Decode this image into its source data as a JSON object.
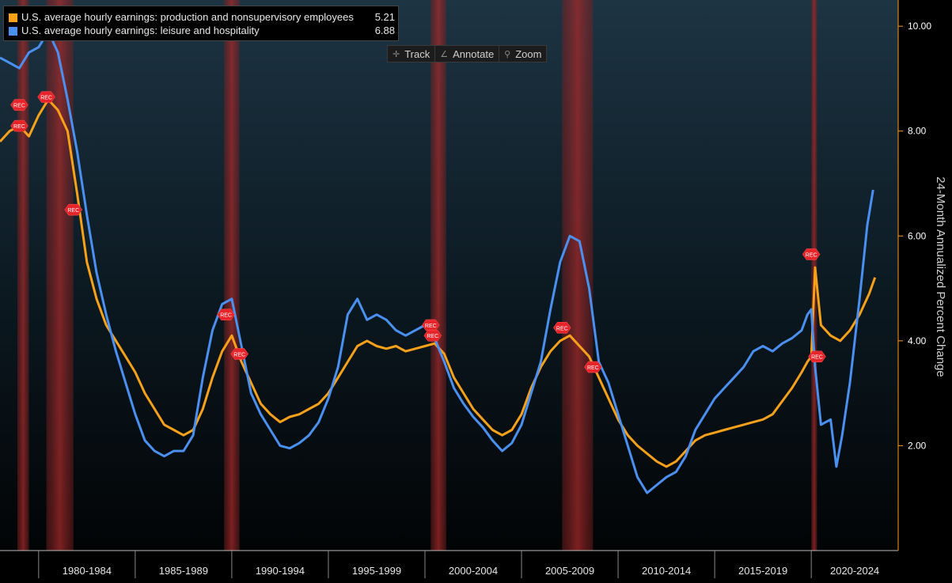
{
  "chart_data": {
    "type": "line",
    "ylabel": "24-Month Annualized Percent Change",
    "ylim": [
      0,
      10.5
    ],
    "y_ticks": [
      "2.00",
      "4.00",
      "6.00",
      "8.00",
      "10.00"
    ],
    "x_range": [
      1978.0,
      2024.5
    ],
    "x_ticks": [
      {
        "label": "1980-1984",
        "start": 1980,
        "end": 1985
      },
      {
        "label": "1985-1989",
        "start": 1985,
        "end": 1990
      },
      {
        "label": "1990-1994",
        "start": 1990,
        "end": 1995
      },
      {
        "label": "1995-1999",
        "start": 1995,
        "end": 2000
      },
      {
        "label": "2000-2004",
        "start": 2000,
        "end": 2005
      },
      {
        "label": "2005-2009",
        "start": 2005,
        "end": 2010
      },
      {
        "label": "2010-2014",
        "start": 2010,
        "end": 2015
      },
      {
        "label": "2015-2019",
        "start": 2015,
        "end": 2020
      },
      {
        "label": "2020-2024",
        "start": 2020,
        "end": 2025
      }
    ],
    "recessions": [
      {
        "start": 1978.9,
        "end": 1979.5
      },
      {
        "start": 1980.4,
        "end": 1981.8
      },
      {
        "start": 1989.6,
        "end": 1990.4
      },
      {
        "start": 2000.3,
        "end": 2001.1
      },
      {
        "start": 2007.1,
        "end": 2008.7
      },
      {
        "start": 2020.0,
        "end": 2020.3
      }
    ],
    "rec_flag_label": "REC",
    "rec_flags": [
      {
        "series": 0,
        "x": 1979.0,
        "y": 8.5
      },
      {
        "series": 0,
        "x": 1979.0,
        "y": 8.1
      },
      {
        "series": 0,
        "x": 1980.4,
        "y": 8.65
      },
      {
        "series": 0,
        "x": 1981.8,
        "y": 6.5
      },
      {
        "series": 0,
        "x": 1989.7,
        "y": 4.5
      },
      {
        "series": 0,
        "x": 1990.4,
        "y": 3.75
      },
      {
        "series": 0,
        "x": 2000.3,
        "y": 4.3
      },
      {
        "series": 0,
        "x": 2000.4,
        "y": 4.1
      },
      {
        "series": 0,
        "x": 2007.1,
        "y": 4.25
      },
      {
        "series": 0,
        "x": 2008.7,
        "y": 3.5
      },
      {
        "series": 1,
        "x": 2020.0,
        "y": 5.65
      },
      {
        "series": 1,
        "x": 2020.3,
        "y": 3.7
      }
    ],
    "series": [
      {
        "name": "U.S. average hourly earnings: production and nonsupervisory employees",
        "last_value": "5.21",
        "color": "#f7a11a",
        "points": [
          [
            1978.0,
            7.8
          ],
          [
            1978.5,
            8.0
          ],
          [
            1979.0,
            8.1
          ],
          [
            1979.5,
            7.9
          ],
          [
            1980.0,
            8.3
          ],
          [
            1980.5,
            8.6
          ],
          [
            1981.0,
            8.4
          ],
          [
            1981.5,
            8.0
          ],
          [
            1982.0,
            6.8
          ],
          [
            1982.5,
            5.5
          ],
          [
            1983.0,
            4.8
          ],
          [
            1983.5,
            4.3
          ],
          [
            1984.0,
            4.0
          ],
          [
            1984.5,
            3.7
          ],
          [
            1985.0,
            3.4
          ],
          [
            1985.5,
            3.0
          ],
          [
            1986.0,
            2.7
          ],
          [
            1986.5,
            2.4
          ],
          [
            1987.0,
            2.3
          ],
          [
            1987.5,
            2.2
          ],
          [
            1988.0,
            2.3
          ],
          [
            1988.5,
            2.7
          ],
          [
            1989.0,
            3.3
          ],
          [
            1989.5,
            3.8
          ],
          [
            1990.0,
            4.1
          ],
          [
            1990.5,
            3.6
          ],
          [
            1991.0,
            3.2
          ],
          [
            1991.5,
            2.8
          ],
          [
            1992.0,
            2.6
          ],
          [
            1992.5,
            2.45
          ],
          [
            1993.0,
            2.55
          ],
          [
            1993.5,
            2.6
          ],
          [
            1994.0,
            2.7
          ],
          [
            1994.5,
            2.8
          ],
          [
            1995.0,
            3.0
          ],
          [
            1995.5,
            3.3
          ],
          [
            1996.0,
            3.6
          ],
          [
            1996.5,
            3.9
          ],
          [
            1997.0,
            4.0
          ],
          [
            1997.5,
            3.9
          ],
          [
            1998.0,
            3.85
          ],
          [
            1998.5,
            3.9
          ],
          [
            1999.0,
            3.8
          ],
          [
            1999.5,
            3.85
          ],
          [
            2000.0,
            3.9
          ],
          [
            2000.5,
            3.95
          ],
          [
            2001.0,
            3.75
          ],
          [
            2001.5,
            3.3
          ],
          [
            2002.0,
            3.0
          ],
          [
            2002.5,
            2.7
          ],
          [
            2003.0,
            2.5
          ],
          [
            2003.5,
            2.3
          ],
          [
            2004.0,
            2.2
          ],
          [
            2004.5,
            2.3
          ],
          [
            2005.0,
            2.6
          ],
          [
            2005.5,
            3.1
          ],
          [
            2006.0,
            3.5
          ],
          [
            2006.5,
            3.8
          ],
          [
            2007.0,
            4.0
          ],
          [
            2007.5,
            4.1
          ],
          [
            2008.0,
            3.9
          ],
          [
            2008.5,
            3.7
          ],
          [
            2009.0,
            3.3
          ],
          [
            2009.5,
            2.9
          ],
          [
            2010.0,
            2.5
          ],
          [
            2010.5,
            2.2
          ],
          [
            2011.0,
            2.0
          ],
          [
            2011.5,
            1.85
          ],
          [
            2012.0,
            1.7
          ],
          [
            2012.5,
            1.6
          ],
          [
            2013.0,
            1.7
          ],
          [
            2013.5,
            1.9
          ],
          [
            2014.0,
            2.1
          ],
          [
            2014.5,
            2.2
          ],
          [
            2015.0,
            2.25
          ],
          [
            2015.5,
            2.3
          ],
          [
            2016.0,
            2.35
          ],
          [
            2016.5,
            2.4
          ],
          [
            2017.0,
            2.45
          ],
          [
            2017.5,
            2.5
          ],
          [
            2018.0,
            2.6
          ],
          [
            2018.5,
            2.85
          ],
          [
            2019.0,
            3.1
          ],
          [
            2019.5,
            3.4
          ],
          [
            2019.8,
            3.6
          ],
          [
            2020.0,
            3.7
          ],
          [
            2020.2,
            5.4
          ],
          [
            2020.5,
            4.3
          ],
          [
            2021.0,
            4.1
          ],
          [
            2021.5,
            4.0
          ],
          [
            2022.0,
            4.2
          ],
          [
            2022.5,
            4.5
          ],
          [
            2023.0,
            4.9
          ],
          [
            2023.3,
            5.21
          ]
        ]
      },
      {
        "name": "U.S. average hourly earnings: leisure and hospitality",
        "last_value": "6.88",
        "color": "#4a90f0",
        "points": [
          [
            1978.0,
            9.4
          ],
          [
            1978.5,
            9.3
          ],
          [
            1979.0,
            9.2
          ],
          [
            1979.5,
            9.5
          ],
          [
            1980.0,
            9.6
          ],
          [
            1980.5,
            9.9
          ],
          [
            1981.0,
            9.5
          ],
          [
            1981.5,
            8.6
          ],
          [
            1982.0,
            7.6
          ],
          [
            1982.5,
            6.4
          ],
          [
            1983.0,
            5.3
          ],
          [
            1983.5,
            4.5
          ],
          [
            1984.0,
            3.8
          ],
          [
            1984.5,
            3.2
          ],
          [
            1985.0,
            2.6
          ],
          [
            1985.5,
            2.1
          ],
          [
            1986.0,
            1.9
          ],
          [
            1986.5,
            1.8
          ],
          [
            1987.0,
            1.9
          ],
          [
            1987.5,
            1.9
          ],
          [
            1988.0,
            2.2
          ],
          [
            1988.5,
            3.3
          ],
          [
            1989.0,
            4.2
          ],
          [
            1989.5,
            4.7
          ],
          [
            1990.0,
            4.8
          ],
          [
            1990.5,
            3.9
          ],
          [
            1991.0,
            3.0
          ],
          [
            1991.5,
            2.6
          ],
          [
            1992.0,
            2.3
          ],
          [
            1992.5,
            2.0
          ],
          [
            1993.0,
            1.95
          ],
          [
            1993.5,
            2.05
          ],
          [
            1994.0,
            2.2
          ],
          [
            1994.5,
            2.45
          ],
          [
            1995.0,
            2.9
          ],
          [
            1995.5,
            3.5
          ],
          [
            1996.0,
            4.5
          ],
          [
            1996.5,
            4.8
          ],
          [
            1997.0,
            4.4
          ],
          [
            1997.5,
            4.5
          ],
          [
            1998.0,
            4.4
          ],
          [
            1998.5,
            4.2
          ],
          [
            1999.0,
            4.1
          ],
          [
            1999.5,
            4.2
          ],
          [
            2000.0,
            4.3
          ],
          [
            2000.5,
            4.05
          ],
          [
            2001.0,
            3.6
          ],
          [
            2001.5,
            3.1
          ],
          [
            2002.0,
            2.8
          ],
          [
            2002.5,
            2.55
          ],
          [
            2003.0,
            2.35
          ],
          [
            2003.5,
            2.1
          ],
          [
            2004.0,
            1.9
          ],
          [
            2004.5,
            2.05
          ],
          [
            2005.0,
            2.4
          ],
          [
            2005.5,
            3.0
          ],
          [
            2006.0,
            3.6
          ],
          [
            2006.5,
            4.6
          ],
          [
            2007.0,
            5.5
          ],
          [
            2007.5,
            6.0
          ],
          [
            2008.0,
            5.9
          ],
          [
            2008.5,
            5.0
          ],
          [
            2009.0,
            3.6
          ],
          [
            2009.5,
            3.2
          ],
          [
            2010.0,
            2.6
          ],
          [
            2010.5,
            2.0
          ],
          [
            2011.0,
            1.4
          ],
          [
            2011.5,
            1.1
          ],
          [
            2012.0,
            1.25
          ],
          [
            2012.5,
            1.4
          ],
          [
            2013.0,
            1.5
          ],
          [
            2013.5,
            1.8
          ],
          [
            2014.0,
            2.3
          ],
          [
            2014.5,
            2.6
          ],
          [
            2015.0,
            2.9
          ],
          [
            2015.5,
            3.1
          ],
          [
            2016.0,
            3.3
          ],
          [
            2016.5,
            3.5
          ],
          [
            2017.0,
            3.8
          ],
          [
            2017.5,
            3.9
          ],
          [
            2018.0,
            3.8
          ],
          [
            2018.5,
            3.95
          ],
          [
            2019.0,
            4.05
          ],
          [
            2019.5,
            4.2
          ],
          [
            2019.8,
            4.5
          ],
          [
            2020.0,
            4.6
          ],
          [
            2020.2,
            3.5
          ],
          [
            2020.5,
            2.4
          ],
          [
            2021.0,
            2.5
          ],
          [
            2021.3,
            1.6
          ],
          [
            2021.6,
            2.2
          ],
          [
            2022.0,
            3.2
          ],
          [
            2022.5,
            4.8
          ],
          [
            2022.9,
            6.2
          ],
          [
            2023.2,
            6.88
          ]
        ]
      }
    ]
  },
  "toolbar": {
    "track_label": "Track",
    "annotate_label": "Annotate",
    "zoom_label": "Zoom"
  }
}
